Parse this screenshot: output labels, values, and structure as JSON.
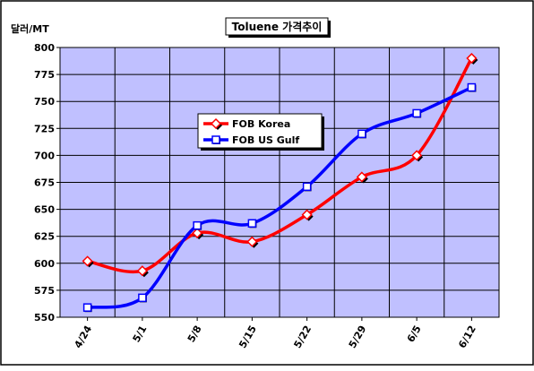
{
  "chart_data": {
    "type": "line",
    "title": "Toluene 가격추이",
    "ylabel": "달러/MT",
    "xlabel": "",
    "categories": [
      "4/24",
      "5/1",
      "5/8",
      "5/15",
      "5/22",
      "5/29",
      "6/5",
      "6/12"
    ],
    "ylim": [
      550,
      800
    ],
    "yticks": [
      550,
      575,
      600,
      625,
      650,
      675,
      700,
      725,
      750,
      775,
      800
    ],
    "grid": true,
    "legend_position": "center",
    "series": [
      {
        "name": "FOB Korea",
        "values": [
          602,
          593,
          628,
          620,
          645,
          680,
          700,
          790
        ],
        "color": "#ff0000",
        "marker": "diamond"
      },
      {
        "name": "FOB US Gulf",
        "values": [
          559,
          568,
          635,
          637,
          671,
          720,
          739,
          763
        ],
        "color": "#0000ff",
        "marker": "square"
      }
    ],
    "colors": {
      "plot_background": "#c0c0ff",
      "gridline": "#000000",
      "frame": "#000000"
    }
  }
}
